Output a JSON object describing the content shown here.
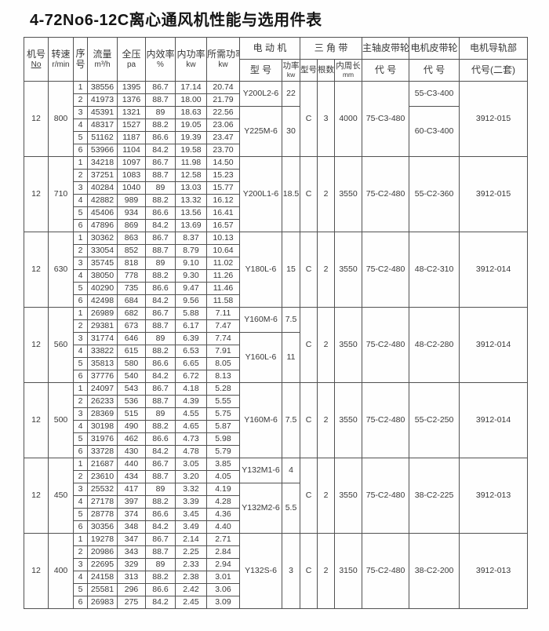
{
  "title": "4-72No6-12C离心通风机性能与选用件表",
  "table": {
    "header": {
      "machine_no": {
        "zh": "机号",
        "sub": "No"
      },
      "speed": {
        "zh": "转速",
        "sub": "r/min"
      },
      "seq": {
        "line1": "序",
        "line2": "号"
      },
      "flow": {
        "zh": "流量",
        "sub": "m³/h"
      },
      "pressure": {
        "zh": "全压",
        "sub": "pa"
      },
      "efficiency": {
        "zh": "内效率",
        "sub": "%"
      },
      "power": {
        "zh": "内功率",
        "sub": "kw"
      },
      "required_power": {
        "zh": "所需功率",
        "sub": "kw"
      },
      "motor_group": "电 动 机",
      "motor_model": "型 号",
      "motor_power": {
        "zh": "功率",
        "sub": "kw"
      },
      "belt_group": "三 角 带",
      "belt_model": "型号",
      "belt_count": "根数",
      "belt_length": {
        "zh": "内周长",
        "sub": "mm"
      },
      "spindle_pulley": {
        "zh": "主轴皮带轮",
        "sub": "代 号"
      },
      "motor_pulley": {
        "zh": "电机皮带轮",
        "sub": "代 号"
      },
      "rail": {
        "zh": "电机导轨部",
        "sub": "代号(二套)"
      }
    },
    "groups": [
      {
        "machine_no": "12",
        "speed": "800",
        "rows": [
          [
            "1",
            "38556",
            "1395",
            "86.7",
            "17.14",
            "20.74"
          ],
          [
            "2",
            "41973",
            "1376",
            "88.7",
            "18.00",
            "21.79"
          ],
          [
            "3",
            "45391",
            "1321",
            "89",
            "18.63",
            "22.56"
          ],
          [
            "4",
            "48317",
            "1527",
            "88.2",
            "19.05",
            "23.06"
          ],
          [
            "5",
            "51162",
            "1187",
            "86.6",
            "19.39",
            "23.47"
          ],
          [
            "6",
            "53966",
            "1104",
            "84.2",
            "19.58",
            "23.70"
          ]
        ],
        "motors": [
          {
            "model": "Y200L2-6",
            "kw": "22",
            "rows": 2
          },
          {
            "model": "Y225M-6",
            "kw": "30",
            "rows": 4
          }
        ],
        "belt": {
          "model": "C",
          "count": "3",
          "length": "4000"
        },
        "spindle_pulley": "75-C3-480",
        "motor_pulleys": [
          {
            "code": "55-C3-400",
            "rows": 2
          },
          {
            "code": "60-C3-400",
            "rows": 4
          }
        ],
        "rail": "3912-015"
      },
      {
        "machine_no": "12",
        "speed": "710",
        "rows": [
          [
            "1",
            "34218",
            "1097",
            "86.7",
            "11.98",
            "14.50"
          ],
          [
            "2",
            "37251",
            "1083",
            "88.7",
            "12.58",
            "15.23"
          ],
          [
            "3",
            "40284",
            "1040",
            "89",
            "13.03",
            "15.77"
          ],
          [
            "4",
            "42882",
            "989",
            "88.2",
            "13.32",
            "16.12"
          ],
          [
            "5",
            "45406",
            "934",
            "86.6",
            "13.56",
            "16.41"
          ],
          [
            "6",
            "47896",
            "869",
            "84.2",
            "13.69",
            "16.57"
          ]
        ],
        "motors": [
          {
            "model": "Y200L1-6",
            "kw": "18.5",
            "rows": 6
          }
        ],
        "belt": {
          "model": "C",
          "count": "2",
          "length": "3550"
        },
        "spindle_pulley": "75-C2-480",
        "motor_pulleys": [
          {
            "code": "55-C2-360",
            "rows": 6
          }
        ],
        "rail": "3912-015"
      },
      {
        "machine_no": "12",
        "speed": "630",
        "rows": [
          [
            "1",
            "30362",
            "863",
            "86.7",
            "8.37",
            "10.13"
          ],
          [
            "2",
            "33054",
            "852",
            "88.7",
            "8.79",
            "10.64"
          ],
          [
            "3",
            "35745",
            "818",
            "89",
            "9.10",
            "11.02"
          ],
          [
            "4",
            "38050",
            "778",
            "88.2",
            "9.30",
            "11.26"
          ],
          [
            "5",
            "40290",
            "735",
            "86.6",
            "9.47",
            "11.46"
          ],
          [
            "6",
            "42498",
            "684",
            "84.2",
            "9.56",
            "11.58"
          ]
        ],
        "motors": [
          {
            "model": "Y180L-6",
            "kw": "15",
            "rows": 6
          }
        ],
        "belt": {
          "model": "C",
          "count": "2",
          "length": "3550"
        },
        "spindle_pulley": "75-C2-480",
        "motor_pulleys": [
          {
            "code": "48-C2-310",
            "rows": 6
          }
        ],
        "rail": "3912-014"
      },
      {
        "machine_no": "12",
        "speed": "560",
        "rows": [
          [
            "1",
            "26989",
            "682",
            "86.7",
            "5.88",
            "7.11"
          ],
          [
            "2",
            "29381",
            "673",
            "88.7",
            "6.17",
            "7.47"
          ],
          [
            "3",
            "31774",
            "646",
            "89",
            "6.39",
            "7.74"
          ],
          [
            "4",
            "33822",
            "615",
            "88.2",
            "6.53",
            "7.91"
          ],
          [
            "5",
            "35813",
            "580",
            "86.6",
            "6.65",
            "8.05"
          ],
          [
            "6",
            "37776",
            "540",
            "84.2",
            "6.72",
            "8.13"
          ]
        ],
        "motors": [
          {
            "model": "Y160M-6",
            "kw": "7.5",
            "rows": 2
          },
          {
            "model": "Y160L-6",
            "kw": "11",
            "rows": 4
          }
        ],
        "belt": {
          "model": "C",
          "count": "2",
          "length": "3550"
        },
        "spindle_pulley": "75-C2-480",
        "motor_pulleys": [
          {
            "code": "48-C2-280",
            "rows": 6
          }
        ],
        "rail": "3912-014"
      },
      {
        "machine_no": "12",
        "speed": "500",
        "rows": [
          [
            "1",
            "24097",
            "543",
            "86.7",
            "4.18",
            "5.28"
          ],
          [
            "2",
            "26233",
            "536",
            "88.7",
            "4.39",
            "5.55"
          ],
          [
            "3",
            "28369",
            "515",
            "89",
            "4.55",
            "5.75"
          ],
          [
            "4",
            "30198",
            "490",
            "88.2",
            "4.65",
            "5.87"
          ],
          [
            "5",
            "31976",
            "462",
            "86.6",
            "4.73",
            "5.98"
          ],
          [
            "6",
            "33728",
            "430",
            "84.2",
            "4.78",
            "5.79"
          ]
        ],
        "motors": [
          {
            "model": "Y160M-6",
            "kw": "7.5",
            "rows": 6
          }
        ],
        "belt": {
          "model": "C",
          "count": "2",
          "length": "3550"
        },
        "spindle_pulley": "75-C2-480",
        "motor_pulleys": [
          {
            "code": "55-C2-250",
            "rows": 6
          }
        ],
        "rail": "3912-014"
      },
      {
        "machine_no": "12",
        "speed": "450",
        "rows": [
          [
            "1",
            "21687",
            "440",
            "86.7",
            "3.05",
            "3.85"
          ],
          [
            "2",
            "23610",
            "434",
            "88.7",
            "3.20",
            "4.05"
          ],
          [
            "3",
            "25532",
            "417",
            "89",
            "3.32",
            "4.19"
          ],
          [
            "4",
            "27178",
            "397",
            "88.2",
            "3.39",
            "4.28"
          ],
          [
            "5",
            "28778",
            "374",
            "86.6",
            "3.45",
            "4.36"
          ],
          [
            "6",
            "30356",
            "348",
            "84.2",
            "3.49",
            "4.40"
          ]
        ],
        "motors": [
          {
            "model": "Y132M1-6",
            "kw": "4",
            "rows": 2
          },
          {
            "model": "Y132M2-6",
            "kw": "5.5",
            "rows": 4
          }
        ],
        "belt": {
          "model": "C",
          "count": "2",
          "length": "3550"
        },
        "spindle_pulley": "75-C2-480",
        "motor_pulleys": [
          {
            "code": "38-C2-225",
            "rows": 6
          }
        ],
        "rail": "3912-013"
      },
      {
        "machine_no": "12",
        "speed": "400",
        "rows": [
          [
            "1",
            "19278",
            "347",
            "86.7",
            "2.14",
            "2.71"
          ],
          [
            "2",
            "20986",
            "343",
            "88.7",
            "2.25",
            "2.84"
          ],
          [
            "3",
            "22695",
            "329",
            "89",
            "2.33",
            "2.94"
          ],
          [
            "4",
            "24158",
            "313",
            "88.2",
            "2.38",
            "3.01"
          ],
          [
            "5",
            "25581",
            "296",
            "86.6",
            "2.42",
            "3.06"
          ],
          [
            "6",
            "26983",
            "275",
            "84.2",
            "2.45",
            "3.09"
          ]
        ],
        "motors": [
          {
            "model": "Y132S-6",
            "kw": "3",
            "rows": 6
          }
        ],
        "belt": {
          "model": "C",
          "count": "2",
          "length": "3150"
        },
        "spindle_pulley": "75-C2-480",
        "motor_pulleys": [
          {
            "code": "38-C2-200",
            "rows": 6
          }
        ],
        "rail": "3912-013"
      }
    ]
  }
}
